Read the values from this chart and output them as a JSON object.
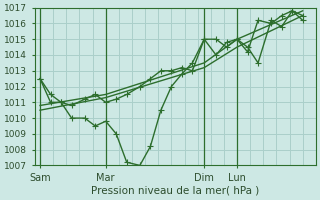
{
  "xlabel": "Pression niveau de la mer( hPa )",
  "ylim": [
    1007,
    1017
  ],
  "yticks": [
    1007,
    1008,
    1009,
    1010,
    1011,
    1012,
    1013,
    1014,
    1015,
    1016,
    1017
  ],
  "bg_color": "#cde8e4",
  "grid_color": "#aacfca",
  "line_color": "#2d6e2d",
  "xtick_labels": [
    "Sam",
    "Mar",
    "Dim",
    "Lun"
  ],
  "xtick_positions": [
    0.0,
    0.25,
    0.625,
    0.75
  ],
  "vline_positions": [
    0.0,
    0.25,
    0.625,
    0.75
  ],
  "series": [
    {
      "x": [
        0.0,
        0.04,
        0.08,
        0.12,
        0.17,
        0.21,
        0.25,
        0.29,
        0.33,
        0.38,
        0.42,
        0.46,
        0.5,
        0.54,
        0.58,
        0.625,
        0.67,
        0.71,
        0.75,
        0.79,
        0.83,
        0.88,
        0.92,
        0.96,
        1.0
      ],
      "y": [
        1012.5,
        1011.5,
        1011.0,
        1010.8,
        1011.2,
        1011.5,
        1011.0,
        1011.2,
        1011.5,
        1012.0,
        1012.5,
        1013.0,
        1013.0,
        1013.2,
        1013.0,
        1015.0,
        1015.0,
        1014.5,
        1015.0,
        1014.5,
        1013.5,
        1016.2,
        1015.8,
        1016.8,
        1016.5
      ]
    },
    {
      "x": [
        0.0,
        0.04,
        0.08,
        0.12,
        0.17,
        0.21,
        0.25,
        0.29,
        0.33,
        0.38,
        0.42,
        0.46,
        0.5,
        0.54,
        0.58,
        0.625,
        0.67,
        0.71,
        0.75,
        0.79,
        0.83,
        0.88,
        0.92,
        0.96,
        1.0
      ],
      "y": [
        1012.5,
        1011.0,
        1011.0,
        1010.0,
        1010.0,
        1009.5,
        1009.8,
        1009.0,
        1007.2,
        1007.0,
        1008.2,
        1010.5,
        1012.0,
        1012.8,
        1013.5,
        1015.0,
        1014.0,
        1014.8,
        1015.0,
        1014.2,
        1016.2,
        1016.0,
        1016.5,
        1016.8,
        1016.2
      ]
    },
    {
      "x": [
        0.0,
        0.25,
        0.625,
        0.75,
        1.0
      ],
      "y": [
        1010.5,
        1011.3,
        1013.2,
        1014.5,
        1016.5
      ]
    },
    {
      "x": [
        0.0,
        0.25,
        0.625,
        0.75,
        1.0
      ],
      "y": [
        1010.8,
        1011.5,
        1013.5,
        1015.0,
        1016.8
      ]
    }
  ],
  "marker": "+",
  "marker_size": 4,
  "line_width": 1.0
}
